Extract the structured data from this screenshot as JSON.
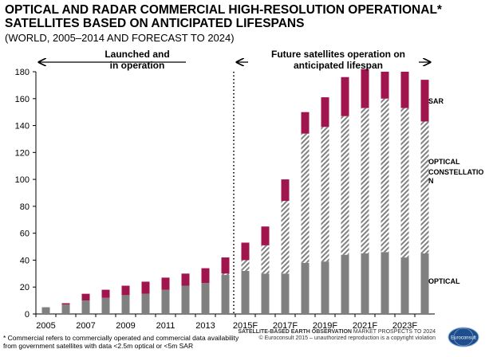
{
  "page": {
    "title_line1": "OPTICAL AND RADAR COMMERCIAL HIGH-RESOLUTION OPERATIONAL*",
    "title_line2": "SATELLITES BASED ON ANTICIPATED LIFESPANS",
    "subtitle": "(WORLD, 2005–2014 AND FORECAST TO 2024)",
    "footnote_line1": "* Commercial refers to commercially operated and commercial data availability",
    "footnote_line2": "from government satellites with data <2.5m optical or <5m SAR",
    "source_bold": "SATELLITE-BASED EARTH OBSERVATION",
    "source_rest": " MARKET PROSPECTS TO 2024",
    "source_line2": "© Euroconsult 2015 – unauthorized reproduction is a copyright violation",
    "logo_text": "Euroconsult"
  },
  "chart_data": {
    "type": "bar",
    "stacked": true,
    "categories": [
      "2005",
      "2006",
      "2007",
      "2008",
      "2009",
      "2010",
      "2011",
      "2012",
      "2013",
      "2014",
      "2015F",
      "2016F",
      "2017F",
      "2018F",
      "2019F",
      "2020F",
      "2021F",
      "2022F",
      "2023F",
      "2024F"
    ],
    "tick_labels": [
      "2005",
      "2007",
      "2009",
      "2011",
      "2013",
      "2015F",
      "2017F",
      "2019F",
      "2021F",
      "2023F"
    ],
    "ylim": [
      0,
      180
    ],
    "yticks": [
      0,
      20,
      40,
      60,
      80,
      100,
      120,
      140,
      160,
      180
    ],
    "series": [
      {
        "name": "OPTICAL",
        "color": "#808080",
        "pattern": "solid",
        "values": [
          5,
          7,
          10,
          12,
          14,
          15,
          18,
          21,
          23,
          29,
          32,
          30,
          30,
          38,
          39,
          44,
          45,
          46,
          42,
          45
        ]
      },
      {
        "name": "OPTICAL CONSTELLATION",
        "color": "#808080",
        "pattern": "hatched",
        "values": [
          0,
          0,
          0,
          0,
          0,
          0,
          0,
          0,
          0,
          1,
          8,
          21,
          54,
          96,
          100,
          103,
          108,
          114,
          111,
          98
        ]
      },
      {
        "name": "SAR",
        "color": "#a0154d",
        "pattern": "solid",
        "values": [
          0,
          1,
          5,
          6,
          7,
          9,
          9,
          9,
          11,
          12,
          13,
          14,
          16,
          16,
          22,
          29,
          29,
          20,
          27,
          31
        ]
      }
    ],
    "legend_labels": [
      "SAR",
      "OPTICAL",
      "CONSTELLATIO",
      "N",
      "OPTICAL"
    ],
    "annotations": {
      "left_line1": "Launched and",
      "left_line2": "in operation",
      "right_line1": "Future satellites operation on",
      "right_line2": "anticipated lifespan"
    },
    "grid": false
  }
}
